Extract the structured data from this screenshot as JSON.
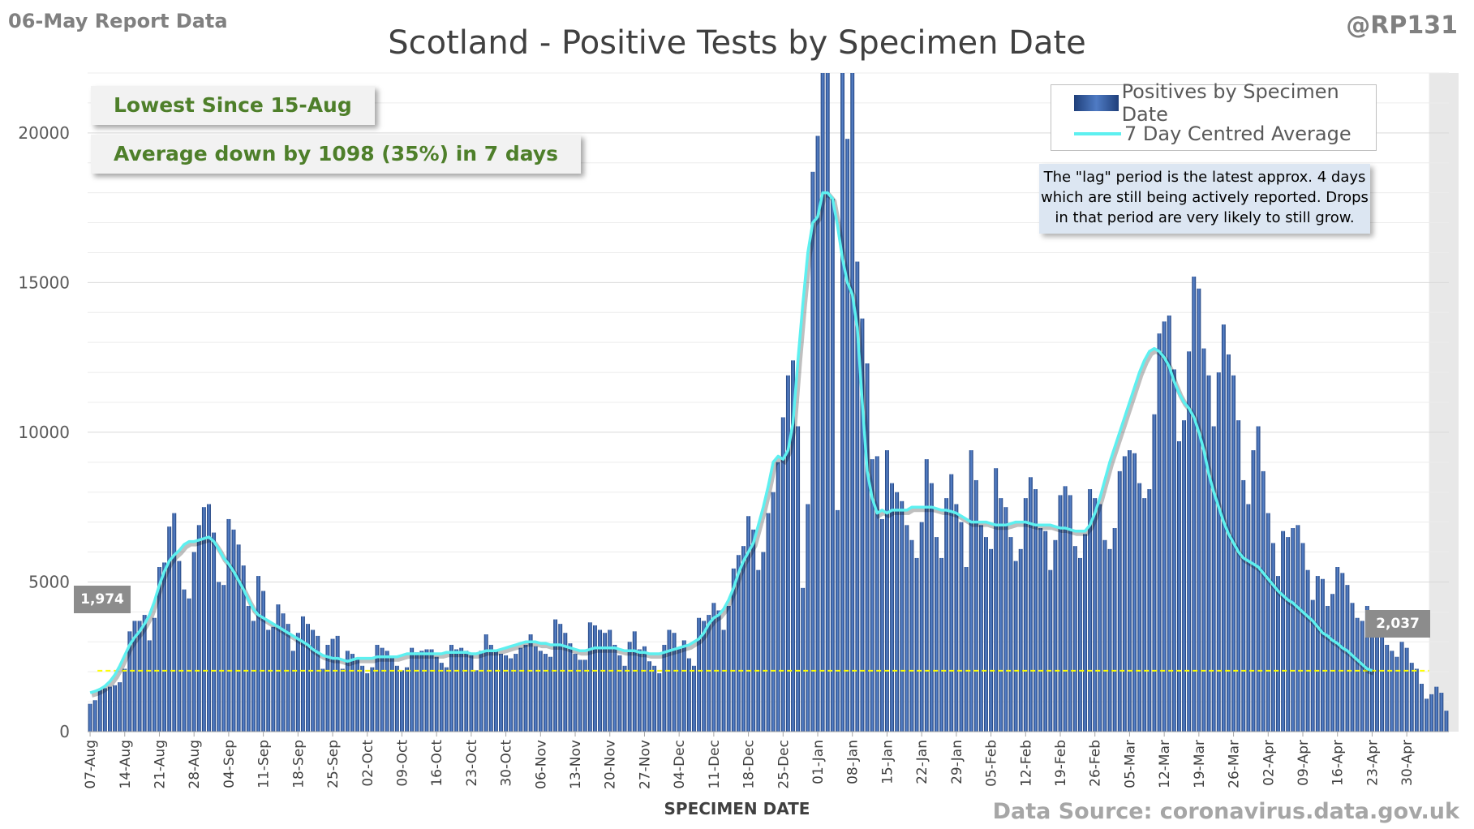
{
  "header": {
    "report_date": "06-May Report Data",
    "handle": "@RP131"
  },
  "callouts": {
    "lowest": "Lowest Since 15-Aug",
    "average": "Average down by 1098 (35%) in 7 days"
  },
  "legend": {
    "bars": "Positives by Specimen Date",
    "line": "7 Day Centred Average"
  },
  "lag_note": {
    "line1": "The \"lag\" period is the latest approx. 4 days",
    "line2": "which are still being actively reported. Drops",
    "line3": "in that period are very likely to still grow."
  },
  "source": "Data Source: coronavirus.data.gov.uk",
  "colors": {
    "bar_dark": "#1f3f7a",
    "bar_light": "#5b87cf",
    "average_line": "#5df0f0",
    "reference_line": "#ffff00",
    "lag_shade": "#e6e6e6"
  },
  "chart_data": {
    "type": "bar",
    "title": "Scotland - Positive Tests by Specimen Date",
    "xlabel": "SPECIMEN DATE",
    "ylabel": "",
    "ylim": [
      0,
      22000
    ],
    "yticks": [
      0,
      5000,
      10000,
      15000,
      20000
    ],
    "start_date": "07-Aug",
    "x_tick_labels": [
      "07-Aug",
      "14-Aug",
      "21-Aug",
      "28-Aug",
      "04-Sep",
      "11-Sep",
      "18-Sep",
      "25-Sep",
      "02-Oct",
      "09-Oct",
      "16-Oct",
      "23-Oct",
      "30-Oct",
      "06-Nov",
      "13-Nov",
      "20-Nov",
      "27-Nov",
      "04-Dec",
      "11-Dec",
      "18-Dec",
      "25-Dec",
      "01-Jan",
      "08-Jan",
      "15-Jan",
      "22-Jan",
      "29-Jan",
      "05-Feb",
      "12-Feb",
      "19-Feb",
      "26-Feb",
      "05-Mar",
      "12-Mar",
      "19-Mar",
      "26-Mar",
      "02-Apr",
      "09-Apr",
      "16-Apr",
      "23-Apr",
      "30-Apr"
    ],
    "grid": true,
    "legend_position": "top-right",
    "series": [
      {
        "name": "Positives by Specimen Date",
        "type": "bar",
        "values": [
          930,
          1050,
          1400,
          1450,
          1500,
          1550,
          1650,
          2100,
          3350,
          3700,
          3700,
          3900,
          3050,
          3800,
          5500,
          5650,
          6850,
          7300,
          5700,
          4750,
          4450,
          6000,
          6900,
          7500,
          7600,
          6650,
          5000,
          4900,
          7100,
          6750,
          6250,
          5550,
          4200,
          3700,
          5200,
          4700,
          3400,
          3500,
          4250,
          3950,
          3600,
          2700,
          3300,
          3850,
          3600,
          3400,
          3200,
          2100,
          2900,
          3100,
          3200,
          2100,
          2700,
          2600,
          2400,
          2200,
          1950,
          2150,
          2900,
          2800,
          2700,
          2500,
          2200,
          2050,
          2150,
          2800,
          2650,
          2700,
          2750,
          2750,
          2500,
          2300,
          2150,
          2900,
          2750,
          2800,
          2700,
          2550,
          2050,
          2700,
          3250,
          2900,
          2750,
          2600,
          2550,
          2450,
          2600,
          2800,
          2900,
          3250,
          2850,
          2700,
          2600,
          2500,
          3750,
          3600,
          3300,
          2950,
          2600,
          2400,
          2400,
          3650,
          3550,
          3400,
          3300,
          3400,
          2900,
          2550,
          2200,
          3000,
          3350,
          2750,
          2850,
          2350,
          2200,
          1950,
          2900,
          3400,
          3300,
          2800,
          3050,
          2450,
          2200,
          3800,
          3700,
          3900,
          4300,
          4050,
          3400,
          4200,
          5450,
          5900,
          6200,
          7200,
          6750,
          5400,
          6000,
          7300,
          8000,
          9000,
          10500,
          11900,
          12400,
          10200,
          4800,
          7600,
          18700,
          19900,
          22000,
          22000,
          17800,
          7400,
          22000,
          19800,
          22000,
          15700,
          13800,
          12300,
          9100,
          9200,
          7100,
          9400,
          8300,
          8000,
          7700,
          6900,
          6400,
          5800,
          7000,
          9100,
          8300,
          6500,
          5800,
          7800,
          8600,
          7600,
          7000,
          5500,
          9400,
          8400,
          6900,
          6500,
          6100,
          8800,
          7800,
          7500,
          6500,
          5700,
          6100,
          7800,
          8500,
          8100,
          6800,
          6700,
          5400,
          6400,
          7900,
          8200,
          7900,
          6200,
          5800,
          6600,
          8100,
          7800,
          7600,
          6400,
          6100,
          6800,
          8700,
          9200,
          9400,
          9300,
          8300,
          7800,
          8100,
          10600,
          13300,
          13700,
          13900,
          12100,
          9700,
          10400,
          12700,
          15200,
          14800,
          12800,
          11900,
          10200,
          12000,
          13600,
          12600,
          11900,
          10400,
          8400,
          7600,
          9400,
          10200,
          8700,
          7300,
          6300,
          5200,
          6700,
          6500,
          6800,
          6900,
          6300,
          5400,
          4400,
          5200,
          5100,
          4200,
          4600,
          5500,
          5300,
          4900,
          4300,
          3800,
          3700,
          4200,
          3600,
          3400,
          3300,
          2900,
          2700,
          2500,
          3000,
          2800,
          2300,
          2100,
          1600,
          1100,
          1250,
          1500,
          1300,
          700
        ]
      },
      {
        "name": "7 Day Centred Average",
        "type": "line",
        "values": [
          1300,
          1350,
          1420,
          1520,
          1680,
          1900,
          2200,
          2550,
          2900,
          3150,
          3350,
          3600,
          3900,
          4350,
          4900,
          5350,
          5700,
          5900,
          6050,
          6250,
          6350,
          6350,
          6400,
          6450,
          6500,
          6350,
          6100,
          5800,
          5600,
          5350,
          5050,
          4750,
          4400,
          4100,
          3900,
          3800,
          3700,
          3600,
          3500,
          3400,
          3300,
          3200,
          3100,
          3000,
          2900,
          2750,
          2650,
          2550,
          2500,
          2450,
          2450,
          2400,
          2350,
          2400,
          2450,
          2450,
          2450,
          2450,
          2500,
          2500,
          2500,
          2500,
          2500,
          2550,
          2600,
          2600,
          2600,
          2600,
          2600,
          2600,
          2600,
          2600,
          2650,
          2650,
          2650,
          2650,
          2650,
          2600,
          2600,
          2650,
          2700,
          2700,
          2700,
          2750,
          2800,
          2850,
          2900,
          2950,
          3000,
          3000,
          3000,
          2950,
          2950,
          2900,
          2900,
          2900,
          2850,
          2800,
          2750,
          2700,
          2700,
          2750,
          2800,
          2800,
          2800,
          2800,
          2800,
          2750,
          2700,
          2700,
          2700,
          2650,
          2650,
          2600,
          2600,
          2600,
          2650,
          2700,
          2750,
          2800,
          2850,
          2900,
          3000,
          3100,
          3300,
          3600,
          3800,
          3900,
          4100,
          4400,
          4800,
          5300,
          5700,
          6000,
          6300,
          6900,
          7500,
          8200,
          9000,
          9200,
          9100,
          9400,
          10300,
          12400,
          14300,
          16000,
          17000,
          17200,
          18000,
          18000,
          17800,
          16900,
          15800,
          15000,
          14600,
          13500,
          11000,
          8700,
          7800,
          7300,
          7400,
          7300,
          7400,
          7400,
          7400,
          7400,
          7500,
          7500,
          7500,
          7500,
          7500,
          7450,
          7400,
          7400,
          7350,
          7300,
          7200,
          7100,
          7000,
          7000,
          7000,
          7000,
          6950,
          6900,
          6900,
          6900,
          6950,
          7000,
          7000,
          7000,
          6950,
          6900,
          6900,
          6900,
          6900,
          6850,
          6800,
          6800,
          6750,
          6700,
          6700,
          6700,
          6900,
          7300,
          7800,
          8400,
          9000,
          9500,
          10000,
          10500,
          11000,
          11500,
          12000,
          12400,
          12700,
          12800,
          12700,
          12500,
          12200,
          11700,
          11300,
          11000,
          10800,
          10500,
          10000,
          9400,
          8600,
          8000,
          7500,
          7000,
          6600,
          6300,
          6000,
          5800,
          5700,
          5600,
          5500,
          5300,
          5100,
          4900,
          4700,
          4550,
          4400,
          4300,
          4150,
          4000,
          3850,
          3700,
          3500,
          3300,
          3200,
          3050,
          2950,
          2800,
          2700,
          2550,
          2400,
          2250,
          2100,
          2037
        ]
      }
    ],
    "reference": {
      "value": 2037,
      "left_label": "1,974",
      "right_label": "2,037"
    },
    "lag_days": 4
  }
}
